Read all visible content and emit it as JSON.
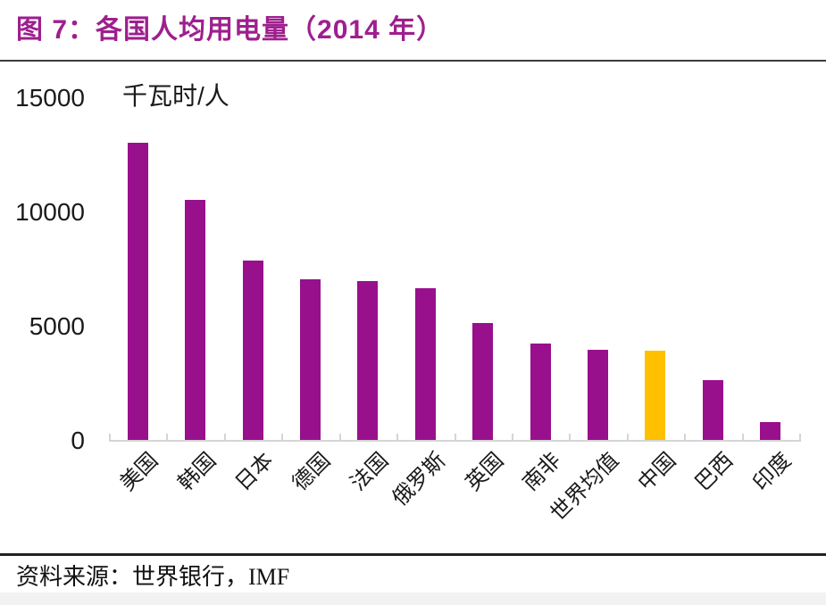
{
  "header": {
    "title": "图 7：各国人均用电量（2014 年）"
  },
  "chart_data": {
    "type": "bar",
    "title": "图 7：各国人均用电量（2014 年）",
    "xlabel": "",
    "ylabel": "千瓦时/人",
    "ylim": [
      0,
      15000
    ],
    "yticks": [
      0,
      5000,
      10000,
      15000
    ],
    "grid": "off",
    "legend": "none",
    "categories": [
      "美国",
      "韩国",
      "日本",
      "德国",
      "法国",
      "俄罗斯",
      "英国",
      "南非",
      "世界均值",
      "中国",
      "巴西",
      "印度"
    ],
    "category_slugs": [
      "usa",
      "south-korea",
      "japan",
      "germany",
      "france",
      "russia",
      "uk",
      "south-africa",
      "world-average",
      "china",
      "brazil",
      "india"
    ],
    "values": [
      13000,
      10500,
      7850,
      7050,
      6950,
      6650,
      5100,
      4200,
      3950,
      3900,
      2600,
      800
    ],
    "highlight_category": "中国",
    "bar_color": "#98108C",
    "highlight_color": "#FFC000"
  },
  "footer": {
    "source": "资料来源：世界银行，IMF"
  },
  "colors": {
    "title_purple": "#9E1F8E",
    "bar_purple": "#98108C",
    "highlight_yellow": "#FFC000",
    "axis_gray": "#D5D5D5"
  }
}
